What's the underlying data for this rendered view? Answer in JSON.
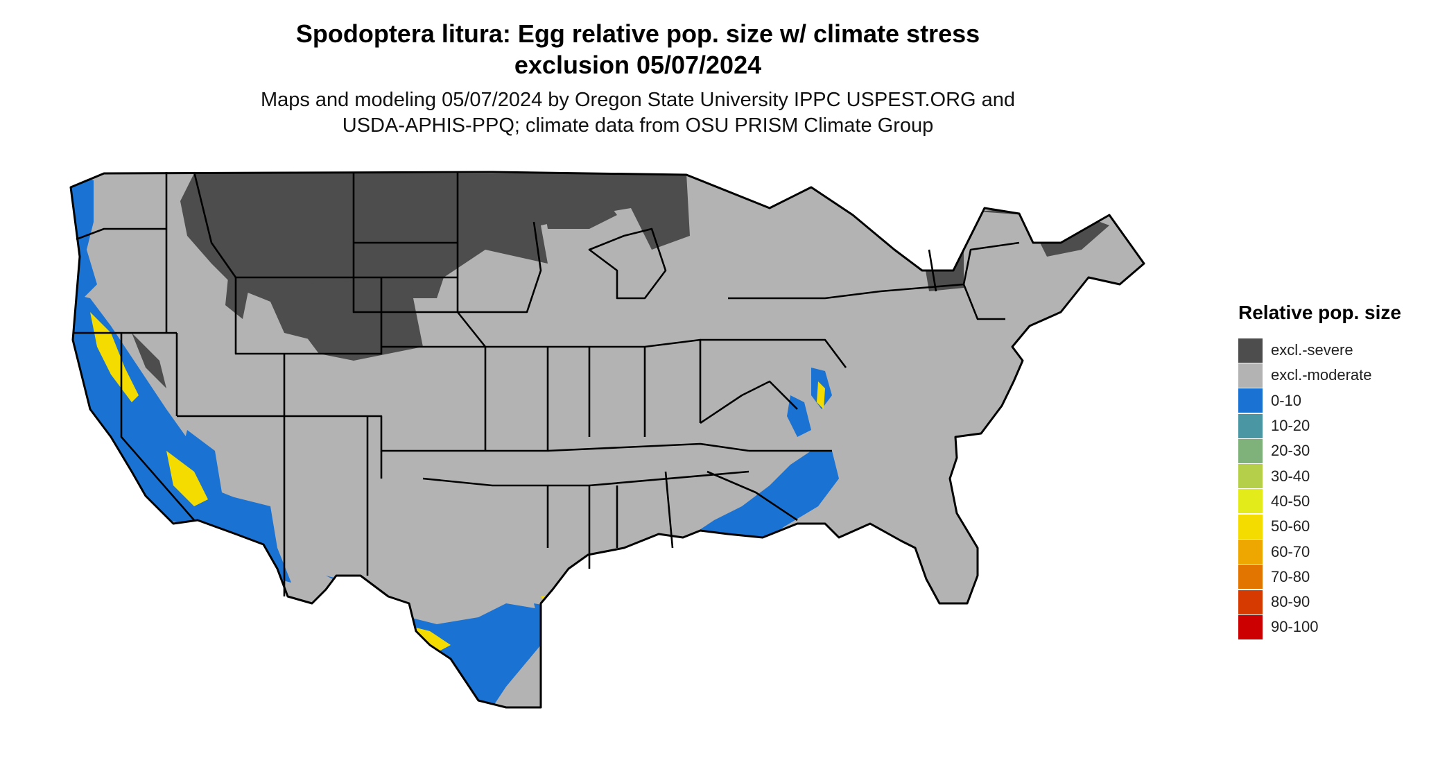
{
  "title_line1": "Spodoptera litura: Egg relative pop. size w/ climate stress",
  "title_line2": "exclusion 05/07/2024",
  "subtitle_line1": "Maps and modeling 05/07/2024 by Oregon State University IPPC USPEST.ORG and",
  "subtitle_line2": "USDA-APHIS-PPQ; climate data from OSU PRISM Climate Group",
  "legend": {
    "title": "Relative pop. size",
    "items": [
      {
        "label": "excl.-severe",
        "color": "#4d4d4d"
      },
      {
        "label": "excl.-moderate",
        "color": "#b3b3b3"
      },
      {
        "label": "0-10",
        "color": "#1a73d2"
      },
      {
        "label": "10-20",
        "color": "#4a97a3"
      },
      {
        "label": "20-30",
        "color": "#7fb27a"
      },
      {
        "label": "30-40",
        "color": "#b5cf4b"
      },
      {
        "label": "40-50",
        "color": "#e3ec1a"
      },
      {
        "label": "50-60",
        "color": "#f5dc00"
      },
      {
        "label": "60-70",
        "color": "#eda700"
      },
      {
        "label": "70-80",
        "color": "#e17500"
      },
      {
        "label": "80-90",
        "color": "#d63a00"
      },
      {
        "label": "90-100",
        "color": "#cc0000"
      }
    ]
  }
}
